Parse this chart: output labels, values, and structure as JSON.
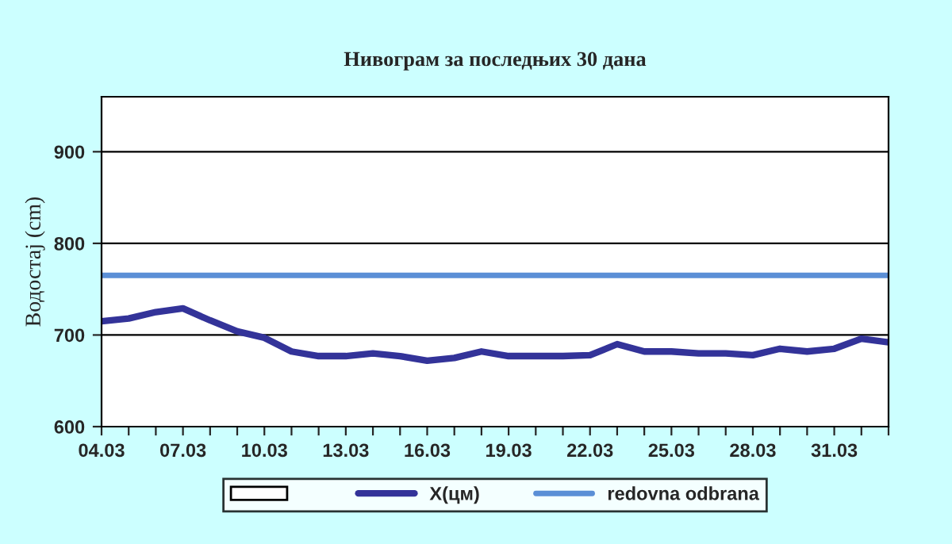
{
  "chart_data": {
    "type": "line",
    "title": "Нивограм за последњих 30 дана",
    "ylabel": "Водостај (cm)",
    "categories": [
      "04.03",
      null,
      null,
      "07.03",
      null,
      null,
      "10.03",
      null,
      null,
      "13.03",
      null,
      null,
      "16.03",
      null,
      null,
      "19.03",
      null,
      null,
      "22.03",
      null,
      null,
      "25.03",
      null,
      null,
      "28.03",
      null,
      null,
      "31.03",
      null,
      null
    ],
    "series": [
      {
        "name": "X(цм)",
        "color": "#333399",
        "values": [
          715,
          718,
          725,
          729,
          716,
          704,
          697,
          682,
          677,
          677,
          680,
          677,
          672,
          675,
          682,
          677,
          677,
          677,
          678,
          690,
          682,
          682,
          680,
          680,
          678,
          685,
          682,
          685,
          696,
          692
        ]
      }
    ],
    "ref_lines": [
      {
        "axis": "y",
        "value": 765,
        "label": "redovna odbrana",
        "color": "#5b8fd6"
      }
    ],
    "ylim": [
      600,
      960
    ],
    "yticks": [
      600,
      700,
      800,
      900
    ],
    "grid": "y",
    "legend": "bottom",
    "marker": "none",
    "line_style": "solid"
  }
}
